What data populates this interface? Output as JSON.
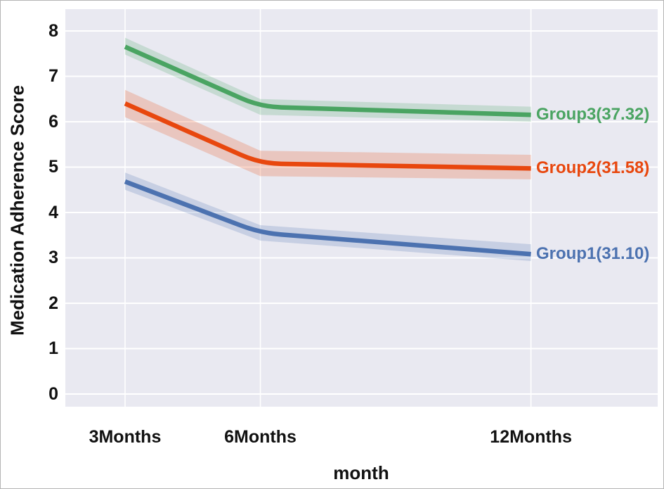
{
  "page": {
    "background": "#ffffff",
    "border_color": "#b5b5b5"
  },
  "chart_data": {
    "type": "line",
    "title": "",
    "xlabel": "month",
    "ylabel": "Medication Adherence Score",
    "plot_bg": "#e9e9f1",
    "grid_color": "#ffffff",
    "grid": "on",
    "legend_position": "right of line ends, text colored like series",
    "x_months": [
      3,
      6,
      12
    ],
    "x_tick_labels": [
      "3Months",
      "6Months",
      "12Months"
    ],
    "y_ticks": [
      0,
      1,
      2,
      3,
      4,
      5,
      6,
      7,
      8
    ],
    "xlim": [
      1.676,
      14.81
    ],
    "ylim": [
      -0.28,
      8.48
    ],
    "series": [
      {
        "name": "Group1",
        "label": "Group1(31.10)",
        "color": "#4c72b0",
        "x": [
          3,
          6,
          12
        ],
        "values": [
          4.68,
          3.55,
          3.08
        ],
        "ci_lower": [
          4.5,
          3.38,
          2.93
        ],
        "ci_upper": [
          4.88,
          3.72,
          3.3
        ]
      },
      {
        "name": "Group2",
        "label": "Group2(31.58)",
        "color": "#e8470e",
        "x": [
          3,
          6,
          12
        ],
        "values": [
          6.4,
          5.08,
          4.97
        ],
        "ci_lower": [
          6.1,
          4.8,
          4.73
        ],
        "ci_upper": [
          6.7,
          5.36,
          5.27
        ]
      },
      {
        "name": "Group3",
        "label": "Group3(37.32)",
        "color": "#4aa462",
        "x": [
          3,
          6,
          12
        ],
        "values": [
          7.65,
          6.33,
          6.15
        ],
        "ci_lower": [
          7.48,
          6.15,
          6.0
        ],
        "ci_upper": [
          7.85,
          6.5,
          6.33
        ]
      }
    ]
  }
}
